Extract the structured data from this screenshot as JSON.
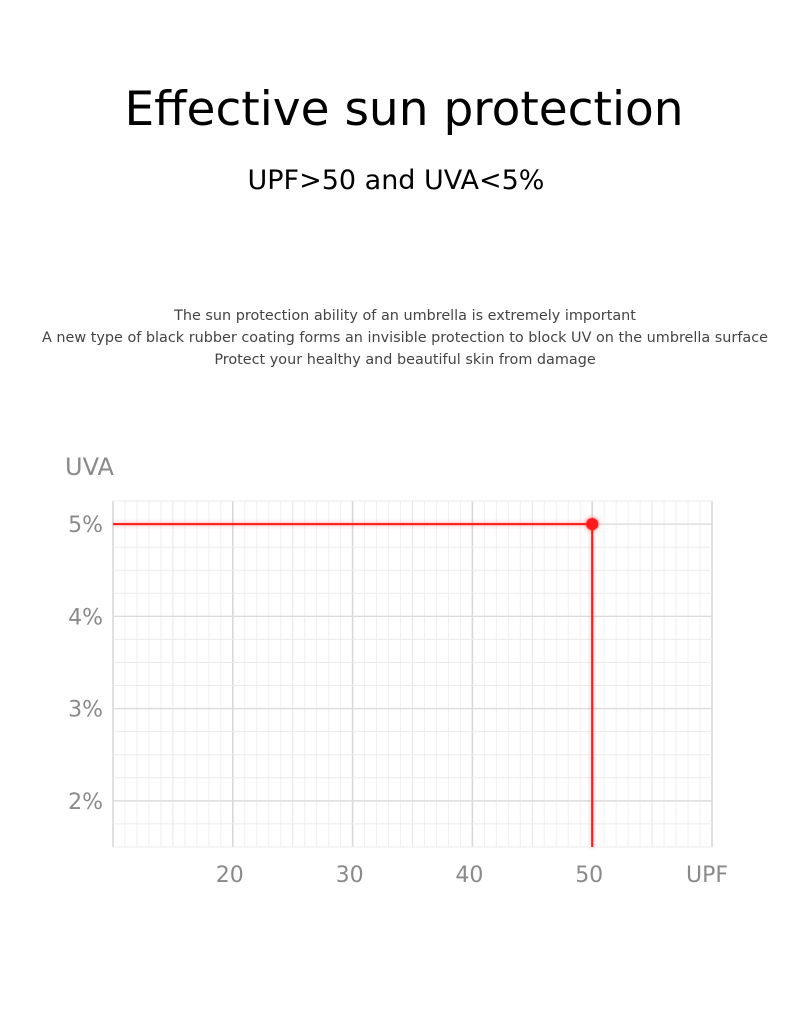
{
  "page": {
    "headline": "Effective sun protection",
    "subheadline": "UPF>50 and UVA<5%",
    "intro_lines": [
      "The sun protection ability of an umbrella is extremely important",
      "A new type of black rubber coating forms an invisible protection to block UV on the umbrella surface",
      "Protect your healthy and beautiful skin from damage"
    ]
  },
  "chart_data": {
    "type": "line",
    "title": "",
    "ylabel": "UVA",
    "xlabel": "UPF",
    "x_ticks": [
      20,
      30,
      40,
      50
    ],
    "y_ticks": [
      "5%",
      "4%",
      "3%",
      "2%"
    ],
    "xlim": [
      10,
      60
    ],
    "ylim": [
      1.5,
      5.25
    ],
    "grid": true,
    "marker": {
      "x": 50,
      "y": 5
    },
    "series": [
      {
        "color": "#ff1a1a",
        "points": [
          {
            "x": 10,
            "y": 5
          },
          {
            "x": 50,
            "y": 5
          },
          {
            "x": 50,
            "y": 1.5
          }
        ]
      }
    ]
  }
}
